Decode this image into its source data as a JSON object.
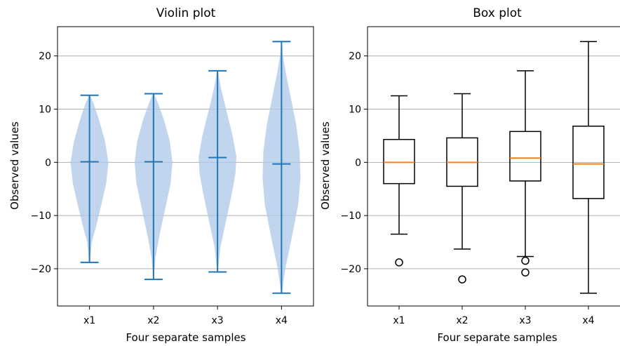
{
  "chart_data": [
    {
      "type": "violin",
      "title": "Violin plot",
      "xlabel": "Four separate samples",
      "ylabel": "Observed values",
      "categories": [
        "x1",
        "x2",
        "x3",
        "x4"
      ],
      "ylim": [
        -27,
        25.5
      ],
      "yticks": [
        -20,
        -10,
        0,
        10,
        20
      ],
      "ytick_labels": [
        "−20",
        "−10",
        "0",
        "10",
        "20"
      ],
      "grid": "horizontal",
      "color": "#1f77b4",
      "fill_color": "#aec7e8",
      "violins": [
        {
          "min": -18.8,
          "max": 12.6,
          "median": 0.1,
          "profile": [
            [
              -18.8,
              0.02
            ],
            [
              -15,
              0.12
            ],
            [
              -12,
              0.35
            ],
            [
              -8,
              0.62
            ],
            [
              -4,
              0.88
            ],
            [
              0,
              1.0
            ],
            [
              4,
              0.82
            ],
            [
              8,
              0.5
            ],
            [
              11,
              0.22
            ],
            [
              12.6,
              0.03
            ]
          ]
        },
        {
          "min": -22.0,
          "max": 12.9,
          "median": 0.1,
          "profile": [
            [
              -22,
              0.02
            ],
            [
              -18,
              0.1
            ],
            [
              -14,
              0.3
            ],
            [
              -9,
              0.6
            ],
            [
              -4,
              0.9
            ],
            [
              0,
              1.0
            ],
            [
              4,
              0.86
            ],
            [
              8,
              0.55
            ],
            [
              11,
              0.25
            ],
            [
              12.9,
              0.03
            ]
          ]
        },
        {
          "min": -20.6,
          "max": 17.2,
          "median": 0.9,
          "profile": [
            [
              -20.6,
              0.02
            ],
            [
              -16,
              0.15
            ],
            [
              -11,
              0.45
            ],
            [
              -6,
              0.75
            ],
            [
              -2,
              0.95
            ],
            [
              1,
              1.0
            ],
            [
              5,
              0.8
            ],
            [
              10,
              0.45
            ],
            [
              14,
              0.18
            ],
            [
              17.2,
              0.02
            ]
          ]
        },
        {
          "min": -24.6,
          "max": 22.7,
          "median": -0.3,
          "profile": [
            [
              -24.6,
              0.02
            ],
            [
              -20,
              0.2
            ],
            [
              -14,
              0.55
            ],
            [
              -8,
              0.88
            ],
            [
              -3,
              1.0
            ],
            [
              2,
              0.96
            ],
            [
              7,
              0.78
            ],
            [
              12,
              0.5
            ],
            [
              17,
              0.22
            ],
            [
              20,
              0.08
            ],
            [
              22.7,
              0.01
            ]
          ]
        }
      ]
    },
    {
      "type": "box",
      "title": "Box plot",
      "xlabel": "Four separate samples",
      "ylabel": "Observed values",
      "categories": [
        "x1",
        "x2",
        "x3",
        "x4"
      ],
      "ylim": [
        -27,
        25.5
      ],
      "yticks": [
        -20,
        -10,
        0,
        10,
        20
      ],
      "ytick_labels": [
        "−20",
        "−10",
        "0",
        "10",
        "20"
      ],
      "grid": "horizontal",
      "median_color": "#ff7f0e",
      "boxes": [
        {
          "whisker_low": -13.5,
          "q1": -4.0,
          "median": 0.0,
          "q3": 4.3,
          "whisker_high": 12.5,
          "outliers": [
            -18.8
          ]
        },
        {
          "whisker_low": -16.3,
          "q1": -4.5,
          "median": 0.0,
          "q3": 4.6,
          "whisker_high": 12.9,
          "outliers": [
            -22.0
          ]
        },
        {
          "whisker_low": -17.7,
          "q1": -3.5,
          "median": 0.8,
          "q3": 5.8,
          "whisker_high": 17.2,
          "outliers": [
            -18.5,
            -20.7
          ]
        },
        {
          "whisker_low": -24.6,
          "q1": -6.8,
          "median": -0.3,
          "q3": 6.8,
          "whisker_high": 22.7,
          "outliers": []
        }
      ]
    }
  ]
}
